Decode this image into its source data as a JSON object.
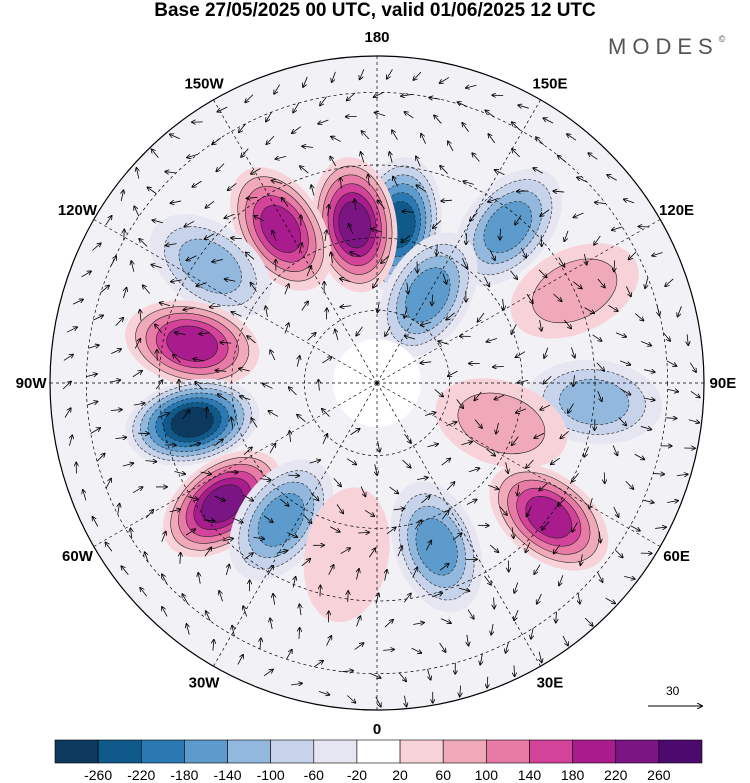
{
  "title": "Base 27/05/2025 00 UTC, valid 01/06/2025 12 UTC",
  "brand": "MODES",
  "brand_mark": "©",
  "longitude_labels": [
    {
      "text": "180",
      "lon": 180
    },
    {
      "text": "150E",
      "lon": 150
    },
    {
      "text": "120E",
      "lon": 120
    },
    {
      "text": "90E",
      "lon": 90
    },
    {
      "text": "60E",
      "lon": 60
    },
    {
      "text": "30E",
      "lon": 30
    },
    {
      "text": "0",
      "lon": 0
    },
    {
      "text": "30W",
      "lon": -30
    },
    {
      "text": "60W",
      "lon": -60
    },
    {
      "text": "90W",
      "lon": -90
    },
    {
      "text": "120W",
      "lon": -120
    },
    {
      "text": "150W",
      "lon": -150
    }
  ],
  "reference_vector": {
    "value": "30"
  },
  "colorbar": {
    "ticks": [
      "-260",
      "-220",
      "-180",
      "-140",
      "-100",
      "-60",
      "-20",
      "20",
      "60",
      "100",
      "140",
      "180",
      "220",
      "260"
    ],
    "colors": [
      "#0b3a5e",
      "#0f5a8a",
      "#2a79b3",
      "#5d9bcc",
      "#92b8dd",
      "#c6d3ea",
      "#e6e6f2",
      "#ffffff",
      "#f7d3d9",
      "#f0a9b9",
      "#e87aa6",
      "#d4439a",
      "#a81c8e",
      "#7b1583",
      "#4d0a6e"
    ]
  },
  "anomaly_centers": [
    {
      "lon": 172,
      "colat": 22,
      "value": -240
    },
    {
      "lon": -172,
      "colat": 22,
      "value": 240
    },
    {
      "lon": -148,
      "colat": 25,
      "value": 180
    },
    {
      "lon": -125,
      "colat": 28,
      "value": -100
    },
    {
      "lon": -102,
      "colat": 26,
      "value": 200
    },
    {
      "lon": -78,
      "colat": 26,
      "value": -260
    },
    {
      "lon": -52,
      "colat": 27,
      "value": 240
    },
    {
      "lon": -35,
      "colat": 23,
      "value": -150
    },
    {
      "lon": -10,
      "colat": 24,
      "value": 40
    },
    {
      "lon": 20,
      "colat": 24,
      "value": -160
    },
    {
      "lon": 52,
      "colat": 30,
      "value": 180
    },
    {
      "lon": 85,
      "colat": 30,
      "value": -110
    },
    {
      "lon": 115,
      "colat": 30,
      "value": 80
    },
    {
      "lon": 140,
      "colat": 28,
      "value": -160
    },
    {
      "lon": 150,
      "colat": 14,
      "value": -140
    },
    {
      "lon": 72,
      "colat": 18,
      "value": 60
    }
  ]
}
